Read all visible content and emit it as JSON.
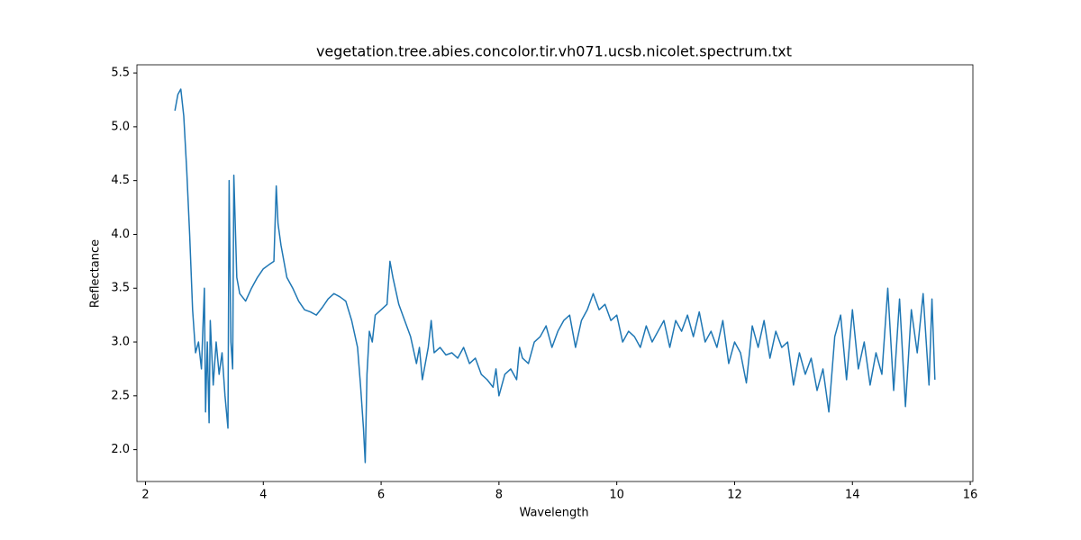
{
  "chart_data": {
    "type": "line",
    "title": "vegetation.tree.abies.concolor.tir.vh071.ucsb.nicolet.spectrum.txt",
    "x_label": "Wavelength",
    "y_label": "Reflectance",
    "xlim": [
      1.855,
      16.045
    ],
    "ylim": [
      1.704,
      5.576
    ],
    "xticks": [
      2,
      4,
      6,
      8,
      10,
      12,
      14,
      16
    ],
    "yticks": [
      {
        "value": 2.0,
        "label": "2.0"
      },
      {
        "value": 2.5,
        "label": "2.5"
      },
      {
        "value": 3.0,
        "label": "3.0"
      },
      {
        "value": 3.5,
        "label": "3.5"
      },
      {
        "value": 4.0,
        "label": "4.0"
      },
      {
        "value": 4.5,
        "label": "4.5"
      },
      {
        "value": 5.0,
        "label": "5.0"
      },
      {
        "value": 5.5,
        "label": "5.5"
      }
    ],
    "color": "#1f77b4",
    "x": [
      2.5,
      2.55,
      2.6,
      2.65,
      2.7,
      2.75,
      2.8,
      2.85,
      2.9,
      2.95,
      3.0,
      3.02,
      3.05,
      3.08,
      3.1,
      3.15,
      3.2,
      3.25,
      3.3,
      3.35,
      3.4,
      3.42,
      3.45,
      3.48,
      3.5,
      3.55,
      3.6,
      3.7,
      3.8,
      3.9,
      4.0,
      4.1,
      4.18,
      4.22,
      4.25,
      4.3,
      4.4,
      4.5,
      4.6,
      4.7,
      4.8,
      4.9,
      5.0,
      5.1,
      5.2,
      5.3,
      5.4,
      5.5,
      5.6,
      5.65,
      5.7,
      5.73,
      5.76,
      5.8,
      5.85,
      5.9,
      6.0,
      6.1,
      6.15,
      6.2,
      6.3,
      6.4,
      6.5,
      6.6,
      6.65,
      6.7,
      6.8,
      6.85,
      6.9,
      7.0,
      7.1,
      7.2,
      7.3,
      7.4,
      7.5,
      7.6,
      7.7,
      7.8,
      7.9,
      7.95,
      8.0,
      8.1,
      8.2,
      8.3,
      8.35,
      8.4,
      8.5,
      8.6,
      8.7,
      8.8,
      8.9,
      9.0,
      9.1,
      9.2,
      9.3,
      9.4,
      9.5,
      9.6,
      9.7,
      9.8,
      9.9,
      10.0,
      10.1,
      10.2,
      10.3,
      10.4,
      10.5,
      10.6,
      10.7,
      10.8,
      10.9,
      11.0,
      11.1,
      11.2,
      11.3,
      11.4,
      11.5,
      11.6,
      11.7,
      11.8,
      11.9,
      12.0,
      12.1,
      12.2,
      12.3,
      12.4,
      12.5,
      12.6,
      12.7,
      12.8,
      12.9,
      13.0,
      13.1,
      13.2,
      13.3,
      13.4,
      13.5,
      13.6,
      13.7,
      13.8,
      13.9,
      14.0,
      14.1,
      14.2,
      14.3,
      14.4,
      14.5,
      14.6,
      14.7,
      14.8,
      14.9,
      15.0,
      15.1,
      15.2,
      15.3,
      15.35,
      15.4
    ],
    "values": [
      5.15,
      5.3,
      5.35,
      5.1,
      4.6,
      4.0,
      3.3,
      2.9,
      3.0,
      2.75,
      3.5,
      2.35,
      3.0,
      2.25,
      3.2,
      2.6,
      3.0,
      2.7,
      2.9,
      2.5,
      2.2,
      4.5,
      3.0,
      2.75,
      4.55,
      3.6,
      3.45,
      3.38,
      3.5,
      3.6,
      3.68,
      3.72,
      3.75,
      4.45,
      4.1,
      3.9,
      3.6,
      3.5,
      3.38,
      3.3,
      3.28,
      3.25,
      3.32,
      3.4,
      3.45,
      3.42,
      3.38,
      3.2,
      2.95,
      2.6,
      2.2,
      1.88,
      2.7,
      3.1,
      3.0,
      3.25,
      3.3,
      3.35,
      3.75,
      3.6,
      3.35,
      3.2,
      3.05,
      2.8,
      2.95,
      2.65,
      2.95,
      3.2,
      2.9,
      2.95,
      2.88,
      2.9,
      2.85,
      2.95,
      2.8,
      2.85,
      2.7,
      2.65,
      2.58,
      2.75,
      2.5,
      2.7,
      2.75,
      2.65,
      2.95,
      2.85,
      2.8,
      3.0,
      3.05,
      3.15,
      2.95,
      3.1,
      3.2,
      3.25,
      2.95,
      3.2,
      3.3,
      3.45,
      3.3,
      3.35,
      3.2,
      3.25,
      3.0,
      3.1,
      3.05,
      2.95,
      3.15,
      3.0,
      3.1,
      3.2,
      2.95,
      3.2,
      3.1,
      3.25,
      3.05,
      3.28,
      3.0,
      3.1,
      2.95,
      3.2,
      2.8,
      3.0,
      2.9,
      2.62,
      3.15,
      2.95,
      3.2,
      2.85,
      3.1,
      2.95,
      3.0,
      2.6,
      2.9,
      2.7,
      2.85,
      2.55,
      2.75,
      2.35,
      3.05,
      3.25,
      2.65,
      3.3,
      2.75,
      3.0,
      2.6,
      2.9,
      2.7,
      3.5,
      2.55,
      3.4,
      2.4,
      3.3,
      2.9,
      3.45,
      2.6,
      3.4,
      2.65
    ]
  }
}
